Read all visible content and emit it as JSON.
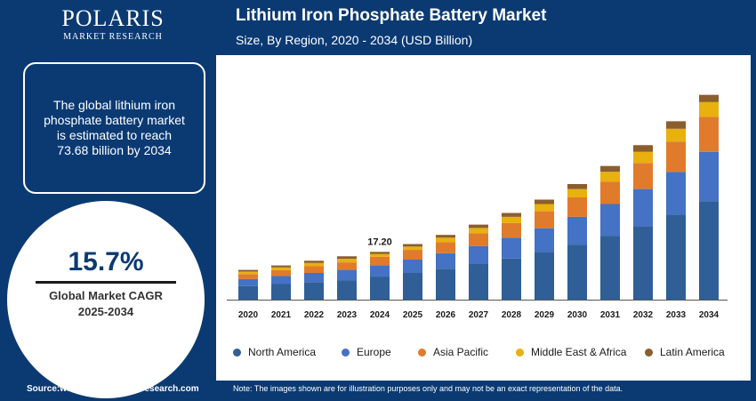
{
  "brand": {
    "name": "POLARIS",
    "tagline": "MARKET RESEARCH"
  },
  "header": {
    "title": "Lithium Iron Phosphate Battery Market",
    "subtitle": "Size, By Region, 2020 - 2034 (USD Billion)"
  },
  "sidebar": {
    "summary": "The global lithium iron phosphate battery market is estimated to reach 73.68 billion by 2034",
    "cagr_value": "15.7%",
    "cagr_label_line1": "Global Market CAGR",
    "cagr_label_line2": "2025-2034"
  },
  "footer": {
    "source": "Source:www.polarismarketresearch.com",
    "note": "Note: The images shown are for illustration purposes only and may not be an exact representation of the data."
  },
  "colors": {
    "brand_navy": "#0b3a73",
    "north_america": "#2f5f96",
    "europe": "#4472c4",
    "asia_pacific": "#e07b2c",
    "middle_east_africa": "#e8b10e",
    "latin_america": "#8b5e2e"
  },
  "chart_data": {
    "type": "bar",
    "stacked": true,
    "title": "Lithium Iron Phosphate Battery Market",
    "subtitle": "Size, By Region, 2020 - 2034 (USD Billion)",
    "categories": [
      "2020",
      "2021",
      "2022",
      "2023",
      "2024",
      "2025",
      "2026",
      "2027",
      "2028",
      "2029",
      "2030",
      "2031",
      "2032",
      "2033",
      "2034"
    ],
    "series": [
      {
        "name": "North America",
        "color": "#2f5f96",
        "values": [
          4.9,
          5.6,
          6.3,
          7.0,
          8.3,
          9.6,
          11.1,
          12.8,
          14.8,
          17.1,
          19.8,
          22.9,
          26.5,
          30.6,
          35.4
        ]
      },
      {
        "name": "Europe",
        "color": "#4472c4",
        "values": [
          2.5,
          2.9,
          3.3,
          3.7,
          4.1,
          4.8,
          5.6,
          6.5,
          7.5,
          8.6,
          10.0,
          11.5,
          13.3,
          15.4,
          17.8
        ]
      },
      {
        "name": "Asia Pacific",
        "color": "#e07b2c",
        "values": [
          1.8,
          2.1,
          2.4,
          2.7,
          3.0,
          3.5,
          4.0,
          4.6,
          5.3,
          6.1,
          7.0,
          8.1,
          9.4,
          10.9,
          12.6
        ]
      },
      {
        "name": "Middle East & Africa",
        "color": "#e8b10e",
        "values": [
          0.9,
          1.0,
          1.2,
          1.3,
          1.0,
          1.2,
          1.6,
          1.9,
          2.2,
          2.6,
          3.0,
          3.5,
          4.0,
          4.6,
          5.3
        ]
      },
      {
        "name": "Latin America",
        "color": "#8b5e2e",
        "values": [
          0.6,
          0.7,
          0.8,
          0.9,
          0.8,
          0.9,
          1.0,
          1.2,
          1.4,
          1.6,
          1.8,
          2.1,
          2.4,
          2.7,
          2.6
        ]
      }
    ],
    "annotation": {
      "category": "2024",
      "label": "17.20"
    },
    "ylim": [
      0,
      80
    ],
    "grid": false,
    "legend": "bottom"
  }
}
